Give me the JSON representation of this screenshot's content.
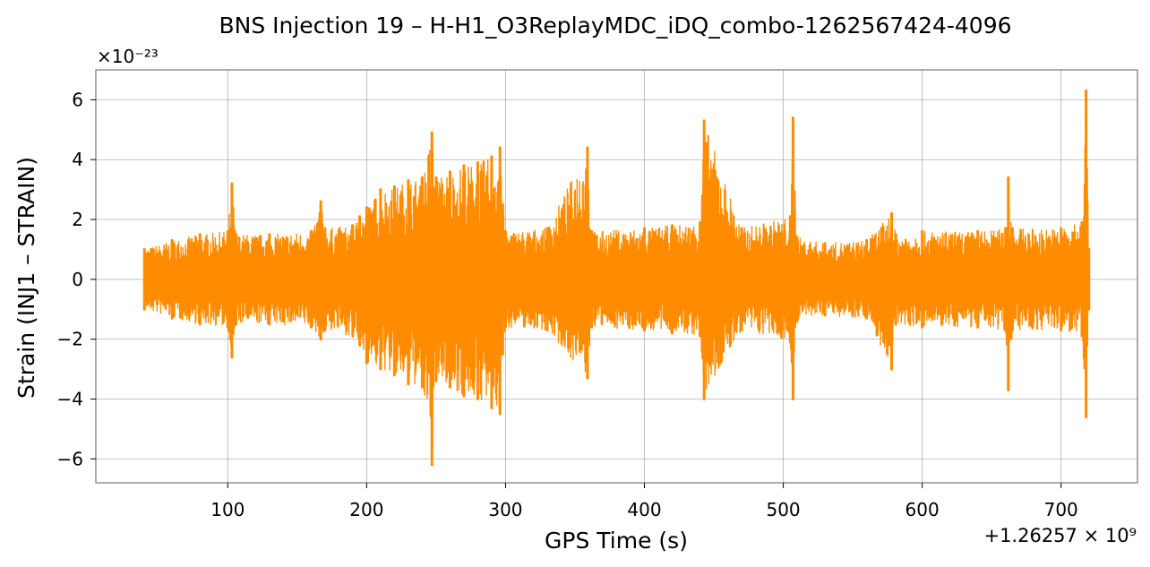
{
  "chart_data": {
    "type": "line",
    "title": "BNS Injection 19 – H-H1_O3ReplayMDC_iDQ_combo-1262567424-4096",
    "xlabel": "GPS Time (s)",
    "ylabel": "Strain (INJ1 – STRAIN)",
    "x_offset_label": "+1.26257 × 10⁹",
    "y_scale_label": "×10⁻²³",
    "xlim": [
      5,
      755
    ],
    "ylim": [
      -6.8,
      7.0
    ],
    "x_ticks": [
      100,
      200,
      300,
      400,
      500,
      600,
      700
    ],
    "x_tick_labels": [
      "100",
      "200",
      "300",
      "400",
      "500",
      "600",
      "700"
    ],
    "y_ticks": [
      -6,
      -4,
      -2,
      0,
      2,
      4,
      6
    ],
    "y_tick_labels": [
      "−6",
      "−4",
      "−2",
      "0",
      "2",
      "4",
      "6"
    ],
    "grid": true,
    "series": [
      {
        "color": "#ff8c00",
        "x_range": [
          40,
          720
        ],
        "envelope": {
          "x": [
            40,
            60,
            80,
            100,
            103,
            106,
            130,
            160,
            167,
            170,
            190,
            195,
            200,
            210,
            220,
            230,
            240,
            247,
            250,
            260,
            270,
            280,
            290,
            296,
            298,
            300,
            330,
            359,
            362,
            400,
            420,
            440,
            443,
            470,
            505,
            507,
            510,
            530,
            560,
            578,
            581,
            600,
            640,
            660,
            662,
            665,
            700,
            715,
            718,
            720
          ],
          "upper": [
            1.0,
            1.3,
            1.5,
            1.6,
            3.2,
            1.5,
            1.5,
            1.6,
            2.6,
            1.7,
            1.8,
            2.1,
            2.4,
            3.0,
            3.1,
            3.3,
            3.4,
            4.9,
            3.4,
            3.6,
            3.8,
            3.9,
            4.1,
            4.4,
            2.5,
            1.6,
            1.7,
            4.4,
            1.6,
            1.7,
            1.8,
            1.9,
            5.3,
            1.7,
            2.1,
            5.4,
            1.4,
            1.2,
            1.3,
            2.2,
            1.5,
            1.6,
            1.6,
            1.7,
            3.4,
            1.7,
            1.7,
            1.9,
            6.3,
            1.0
          ],
          "lower": [
            -1.0,
            -1.3,
            -1.5,
            -1.6,
            -2.6,
            -1.5,
            -1.5,
            -1.6,
            -2.0,
            -1.7,
            -1.9,
            -2.2,
            -2.8,
            -3.0,
            -3.2,
            -3.5,
            -3.6,
            -6.2,
            -3.4,
            -3.6,
            -3.9,
            -4.0,
            -4.3,
            -4.5,
            -2.5,
            -1.6,
            -1.7,
            -3.3,
            -1.6,
            -1.7,
            -1.8,
            -1.9,
            -4.0,
            -1.7,
            -2.1,
            -4.0,
            -1.4,
            -1.2,
            -1.3,
            -3.0,
            -1.5,
            -1.6,
            -1.6,
            -1.7,
            -3.7,
            -1.7,
            -1.7,
            -1.9,
            -4.6,
            -1.0
          ]
        }
      }
    ]
  }
}
